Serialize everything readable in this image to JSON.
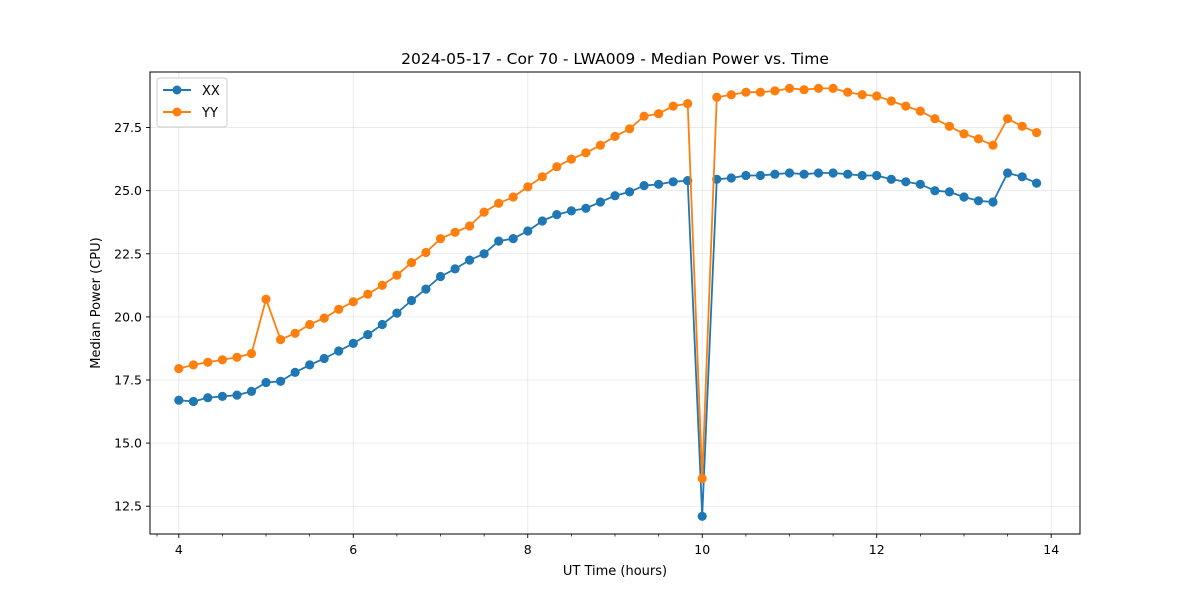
{
  "chart_data": {
    "type": "line",
    "title": "2024-05-17 - Cor 70 - LWA009 - Median Power vs. Time",
    "xlabel": "UT Time (hours)",
    "ylabel": "Median Power (CPU)",
    "xlim": [
      3.67,
      14.33
    ],
    "ylim": [
      11.4,
      29.7
    ],
    "xticks": [
      4,
      6,
      8,
      10,
      12,
      14
    ],
    "xtick_labels": [
      "4",
      "6",
      "8",
      "10",
      "12",
      "14"
    ],
    "yticks": [
      12.5,
      15.0,
      17.5,
      20.0,
      22.5,
      25.0,
      27.5
    ],
    "ytick_labels": [
      "12.5",
      "15.0",
      "17.5",
      "20.0",
      "22.5",
      "25.0",
      "27.5"
    ],
    "grid": true,
    "legend_position": "top-left",
    "x": [
      4.0,
      4.167,
      4.333,
      4.5,
      4.667,
      4.833,
      5.0,
      5.167,
      5.333,
      5.5,
      5.667,
      5.833,
      6.0,
      6.167,
      6.333,
      6.5,
      6.667,
      6.833,
      7.0,
      7.167,
      7.333,
      7.5,
      7.667,
      7.833,
      8.0,
      8.167,
      8.333,
      8.5,
      8.667,
      8.833,
      9.0,
      9.167,
      9.333,
      9.5,
      9.667,
      9.833,
      10.0,
      10.167,
      10.333,
      10.5,
      10.667,
      10.833,
      11.0,
      11.167,
      11.333,
      11.5,
      11.667,
      11.833,
      12.0,
      12.167,
      12.333,
      12.5,
      12.667,
      12.833,
      13.0,
      13.167,
      13.333,
      13.5,
      13.667,
      13.833
    ],
    "series": [
      {
        "name": "XX",
        "color": "#1f77b4",
        "values": [
          16.7,
          16.65,
          16.8,
          16.85,
          16.9,
          17.05,
          17.4,
          17.45,
          17.8,
          18.1,
          18.35,
          18.65,
          18.95,
          19.3,
          19.7,
          20.15,
          20.65,
          21.1,
          21.6,
          21.9,
          22.25,
          22.5,
          23.0,
          23.1,
          23.4,
          23.8,
          24.05,
          24.2,
          24.3,
          24.55,
          24.8,
          24.95,
          25.2,
          25.25,
          25.35,
          25.4,
          12.1,
          25.45,
          25.5,
          25.6,
          25.6,
          25.65,
          25.7,
          25.65,
          25.7,
          25.7,
          25.65,
          25.6,
          25.6,
          25.45,
          25.35,
          25.25,
          25.0,
          24.95,
          24.75,
          24.6,
          24.55,
          25.7,
          25.55,
          25.3
        ]
      },
      {
        "name": "YY",
        "color": "#ff7f0e",
        "values": [
          17.95,
          18.1,
          18.2,
          18.3,
          18.4,
          18.55,
          20.7,
          19.1,
          19.35,
          19.7,
          19.95,
          20.3,
          20.6,
          20.9,
          21.25,
          21.65,
          22.15,
          22.55,
          23.1,
          23.35,
          23.6,
          24.15,
          24.5,
          24.75,
          25.15,
          25.55,
          25.95,
          26.25,
          26.5,
          26.8,
          27.15,
          27.45,
          27.95,
          28.05,
          28.35,
          28.45,
          13.6,
          28.7,
          28.8,
          28.9,
          28.9,
          28.95,
          29.05,
          29.0,
          29.05,
          29.05,
          28.9,
          28.8,
          28.75,
          28.55,
          28.35,
          28.15,
          27.85,
          27.55,
          27.25,
          27.05,
          26.8,
          27.85,
          27.55,
          27.3
        ]
      }
    ]
  }
}
